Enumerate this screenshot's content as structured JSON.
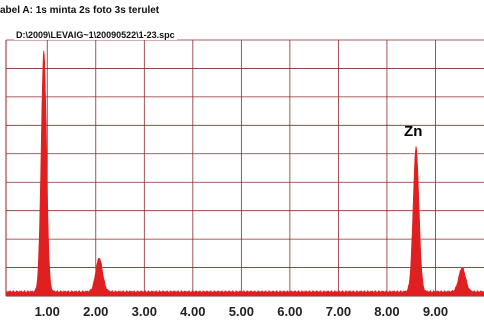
{
  "header": {
    "label_line": "abel A: 1s minta 2s foto 3s terulet",
    "file_path": "D:\\2009\\LEVAIG~1\\20090522\\1-23.spc"
  },
  "colors": {
    "spectrum": "#e02020",
    "grid": "#8a2a2a",
    "background": "#ffffff"
  },
  "chart_data": {
    "type": "area",
    "title": "",
    "xlabel": "",
    "ylabel": "",
    "xlim": [
      0.15,
      10.0
    ],
    "ylim": [
      0,
      100
    ],
    "grid": true,
    "x_ticks": [
      "1.00",
      "2.00",
      "3.00",
      "4.00",
      "5.00",
      "6.00",
      "7.00",
      "8.00",
      "9.00"
    ],
    "x_tick_values": [
      1,
      2,
      3,
      4,
      5,
      6,
      7,
      8,
      9
    ],
    "peaks": [
      {
        "x": 0.93,
        "height": 100,
        "label": ""
      },
      {
        "x": 2.07,
        "height": 14,
        "label": ""
      },
      {
        "x": 8.6,
        "height": 60,
        "label": "Zn"
      },
      {
        "x": 9.55,
        "height": 10,
        "label": ""
      }
    ],
    "baseline": 1.5
  }
}
